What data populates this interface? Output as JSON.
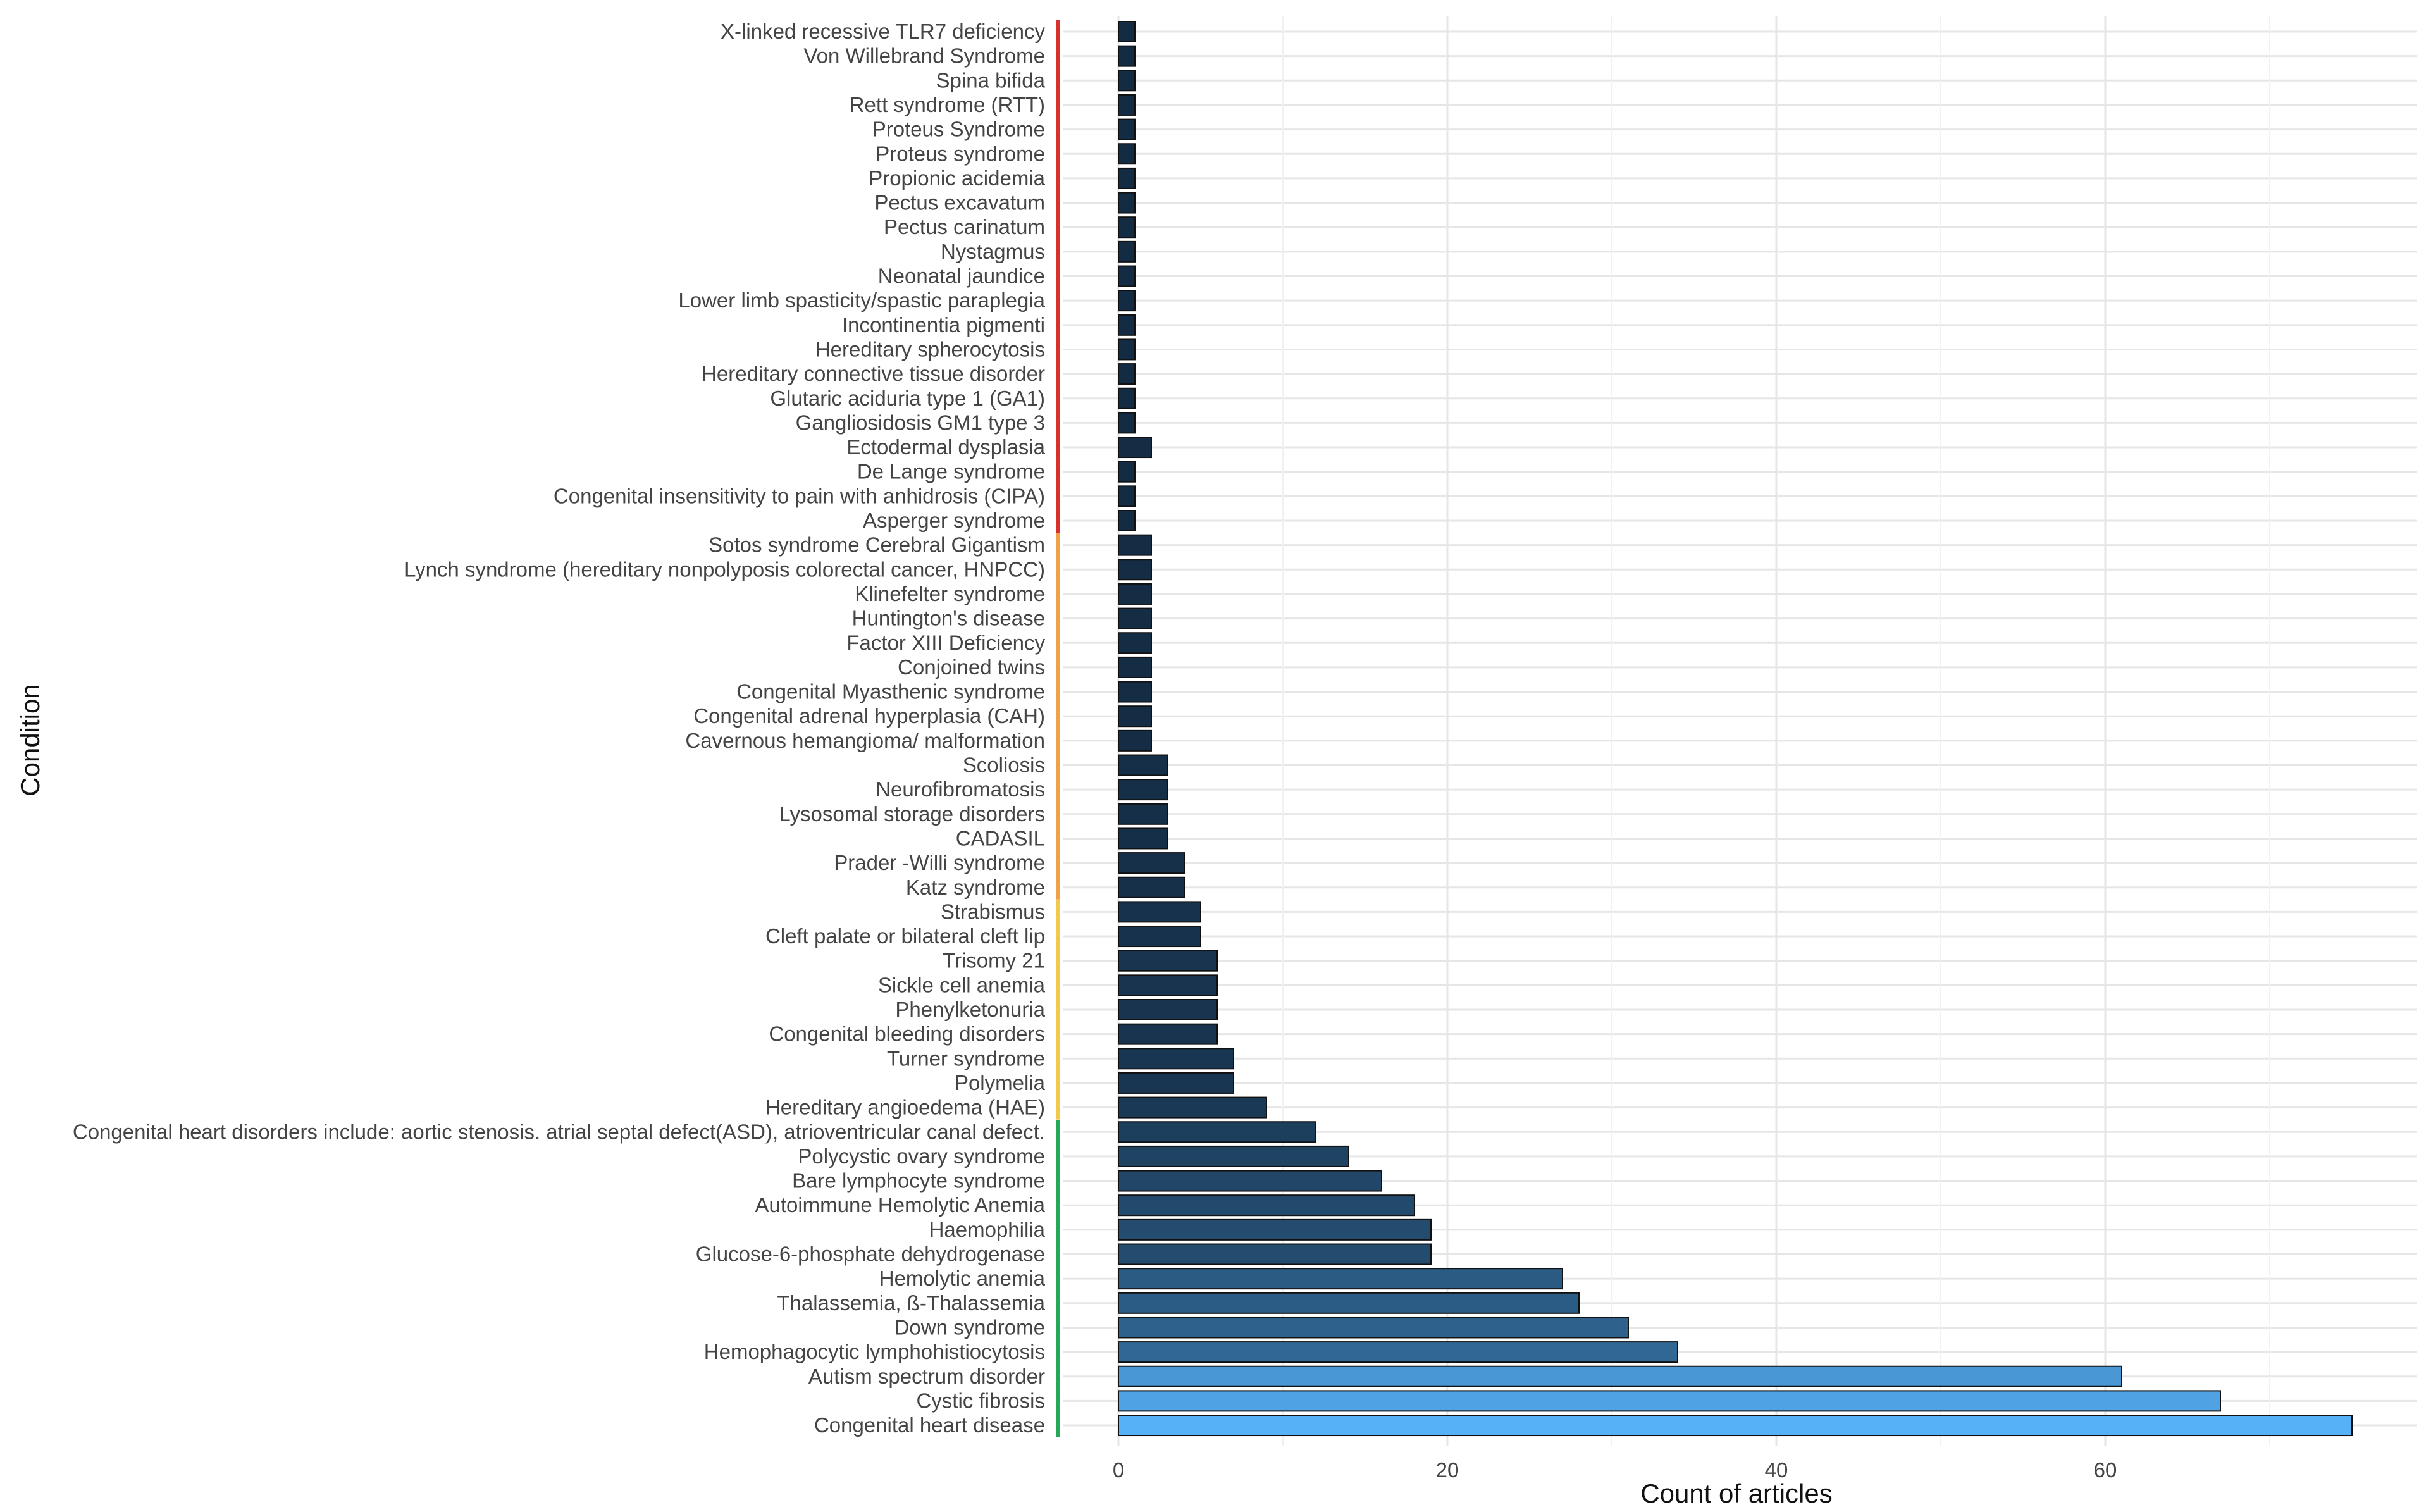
{
  "chart_data": {
    "type": "bar",
    "orientation": "horizontal",
    "title": "",
    "xlabel": "Count of articles",
    "ylabel": "Condition",
    "xlim": [
      0,
      77
    ],
    "xticks": [
      0,
      20,
      40,
      60
    ],
    "grid": true,
    "colors": {
      "bar_min": "#132b43",
      "bar_max": "#56b1f7",
      "group_red": "#d7312d",
      "group_orange": "#f0a14a",
      "group_yellow": "#f2c94c",
      "group_green": "#27a75a"
    },
    "categories": [
      "X-linked recessive TLR7 deficiency",
      "Von Willebrand Syndrome",
      "Spina bifida",
      "Rett syndrome (RTT)",
      "Proteus Syndrome",
      "Proteus syndrome",
      "Propionic acidemia",
      "Pectus excavatum",
      "Pectus carinatum",
      "Nystagmus",
      "Neonatal jaundice",
      "Lower limb spasticity/spastic paraplegia",
      "Incontinentia pigmenti",
      "Hereditary spherocytosis",
      "Hereditary connective tissue disorder",
      "Glutaric aciduria type 1 (GA1)",
      "Gangliosidosis GM1 type 3",
      "Ectodermal dysplasia",
      "De Lange syndrome",
      "Congenital insensitivity to pain with anhidrosis (CIPA)",
      "Asperger syndrome",
      "Sotos syndrome Cerebral Gigantism",
      "Lynch syndrome (hereditary nonpolyposis colorectal cancer, HNPCC)",
      "Klinefelter syndrome",
      "Huntington's disease",
      "Factor XIII Deficiency",
      "Conjoined twins",
      "Congenital Myasthenic syndrome",
      "Congenital adrenal hyperplasia (CAH)",
      "Cavernous hemangioma/ malformation",
      "Scoliosis",
      "Neurofibromatosis",
      "Lysosomal storage disorders",
      "CADASIL",
      "Prader -Willi syndrome",
      "Katz syndrome",
      "Strabismus",
      "Cleft palate or bilateral cleft lip",
      "Trisomy 21",
      "Sickle cell anemia",
      "Phenylketonuria",
      "Congenital bleeding disorders",
      "Turner syndrome",
      "Polymelia",
      "Hereditary angioedema (HAE)",
      "Congenital heart disorders include: aortic stenosis. atrial septal defect(ASD), atrioventricular canal defect.",
      "Polycystic ovary syndrome",
      "Bare lymphocyte syndrome",
      "Autoimmune Hemolytic Anemia",
      "Haemophilia",
      "Glucose-6-phosphate dehydrogenase",
      "Hemolytic anemia",
      "Thalassemia,  ß-Thalassemia",
      "Down syndrome",
      "Hemophagocytic lymphohistiocytosis",
      "Autism spectrum disorder",
      "Cystic fibrosis",
      "Congenital heart disease"
    ],
    "values": [
      1,
      1,
      1,
      1,
      1,
      1,
      1,
      1,
      1,
      1,
      1,
      1,
      1,
      1,
      1,
      1,
      1,
      2,
      1,
      1,
      1,
      2,
      2,
      2,
      2,
      2,
      2,
      2,
      2,
      2,
      3,
      3,
      3,
      3,
      4,
      4,
      5,
      5,
      6,
      6,
      6,
      6,
      7,
      7,
      9,
      12,
      14,
      16,
      18,
      19,
      19,
      27,
      28,
      31,
      34,
      61,
      67,
      75
    ],
    "groups": [
      {
        "name": "red",
        "from": 0,
        "to": 20
      },
      {
        "name": "orange",
        "from": 21,
        "to": 35
      },
      {
        "name": "yellow",
        "from": 36,
        "to": 44
      },
      {
        "name": "green",
        "from": 45,
        "to": 57
      }
    ]
  }
}
